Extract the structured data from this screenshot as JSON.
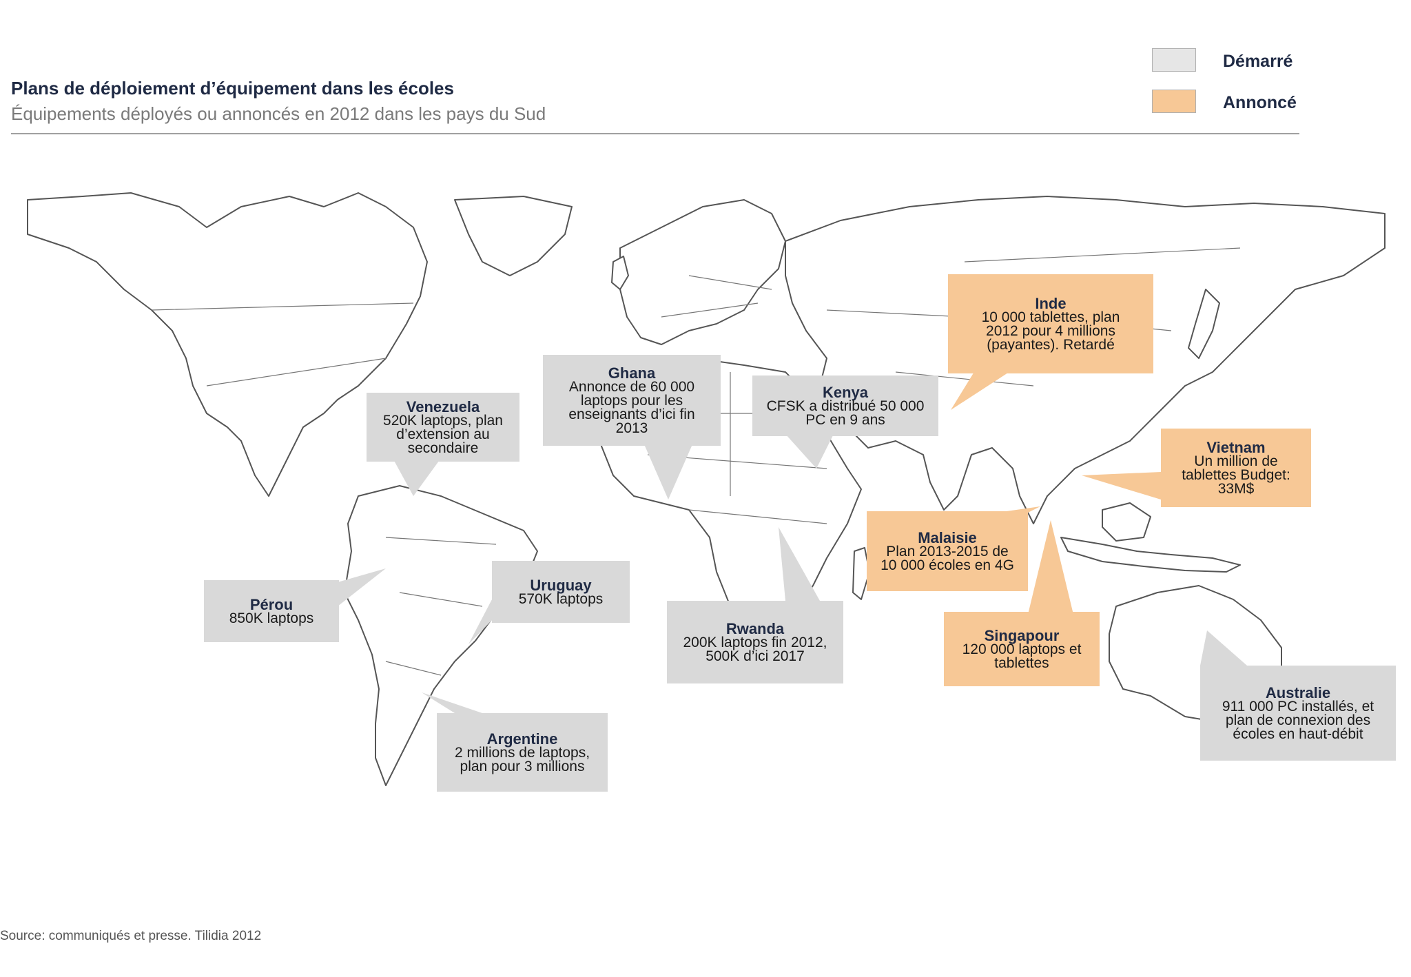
{
  "header": {
    "title": "Plans de déploiement d’équipement dans les écoles",
    "subtitle": "Équipements déployés ou annoncés en 2012 dans les pays du Sud"
  },
  "legend": {
    "started": {
      "label": "Démarré",
      "color": "#d9d9d9"
    },
    "announced": {
      "label": "Annoncé",
      "color": "#f7c896"
    }
  },
  "callouts": [
    {
      "name": "Venezuela",
      "desc": "520K laptops, plan\nd’extension au\nsecondaire",
      "status": "started"
    },
    {
      "name": "Ghana",
      "desc": "Annonce de 60 000\nlaptops pour les\nenseignants d’ici fin\n2013",
      "status": "started"
    },
    {
      "name": "Kenya",
      "desc": "CFSK a distribué 50 000\nPC en 9 ans",
      "status": "started"
    },
    {
      "name": "Inde",
      "desc": "10 000 tablettes, plan\n2012 pour 4 millions\n(payantes). Retardé",
      "status": "announced"
    },
    {
      "name": "Vietnam",
      "desc": "Un million de\ntablettes Budget:\n33M$",
      "status": "announced"
    },
    {
      "name": "Malaisie",
      "desc": "Plan 2013-2015 de\n10 000 écoles en 4G",
      "status": "announced"
    },
    {
      "name": "Pérou",
      "desc": "850K laptops",
      "status": "started"
    },
    {
      "name": "Uruguay",
      "desc": "570K laptops",
      "status": "started"
    },
    {
      "name": "Rwanda",
      "desc": "200K laptops fin 2012,\n500K d’ici 2017",
      "status": "started"
    },
    {
      "name": "Singapour",
      "desc": "120 000 laptops et\ntablettes",
      "status": "announced"
    },
    {
      "name": "Australie",
      "desc": "911 000 PC installés, et\nplan de connexion des\nécoles en haut-débit",
      "status": "started"
    },
    {
      "name": "Argentine",
      "desc": "2 millions de laptops,\nplan pour 3 millions",
      "status": "started"
    }
  ],
  "source": "Source: communiqués et presse. Tilidia 2012"
}
